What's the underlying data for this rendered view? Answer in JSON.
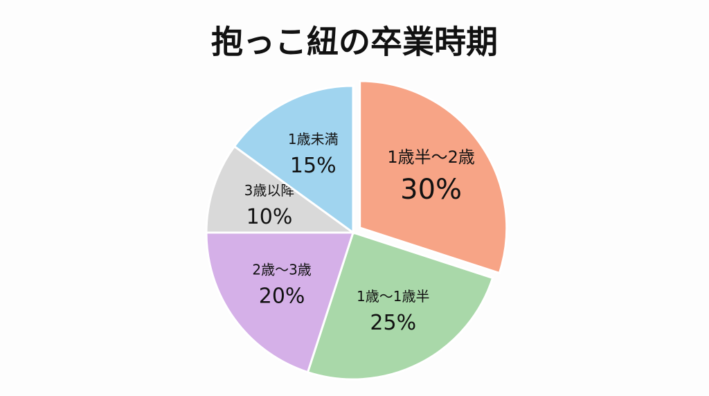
{
  "chart_data": {
    "type": "pie",
    "title": "抱っこ紐の卒業時期",
    "categories": [
      "1歳半～2歳",
      "1歳～1歳半",
      "2歳～3歳",
      "3歳以降",
      "1歳未満"
    ],
    "values": [
      30,
      25,
      20,
      10,
      15
    ],
    "value_labels": [
      "30%",
      "25%",
      "20%",
      "10%",
      "15%"
    ],
    "colors": [
      "#f7a486",
      "#a9d8a9",
      "#d5b0e8",
      "#d9d9d9",
      "#a0d4ef"
    ],
    "exploded": [
      0
    ]
  }
}
